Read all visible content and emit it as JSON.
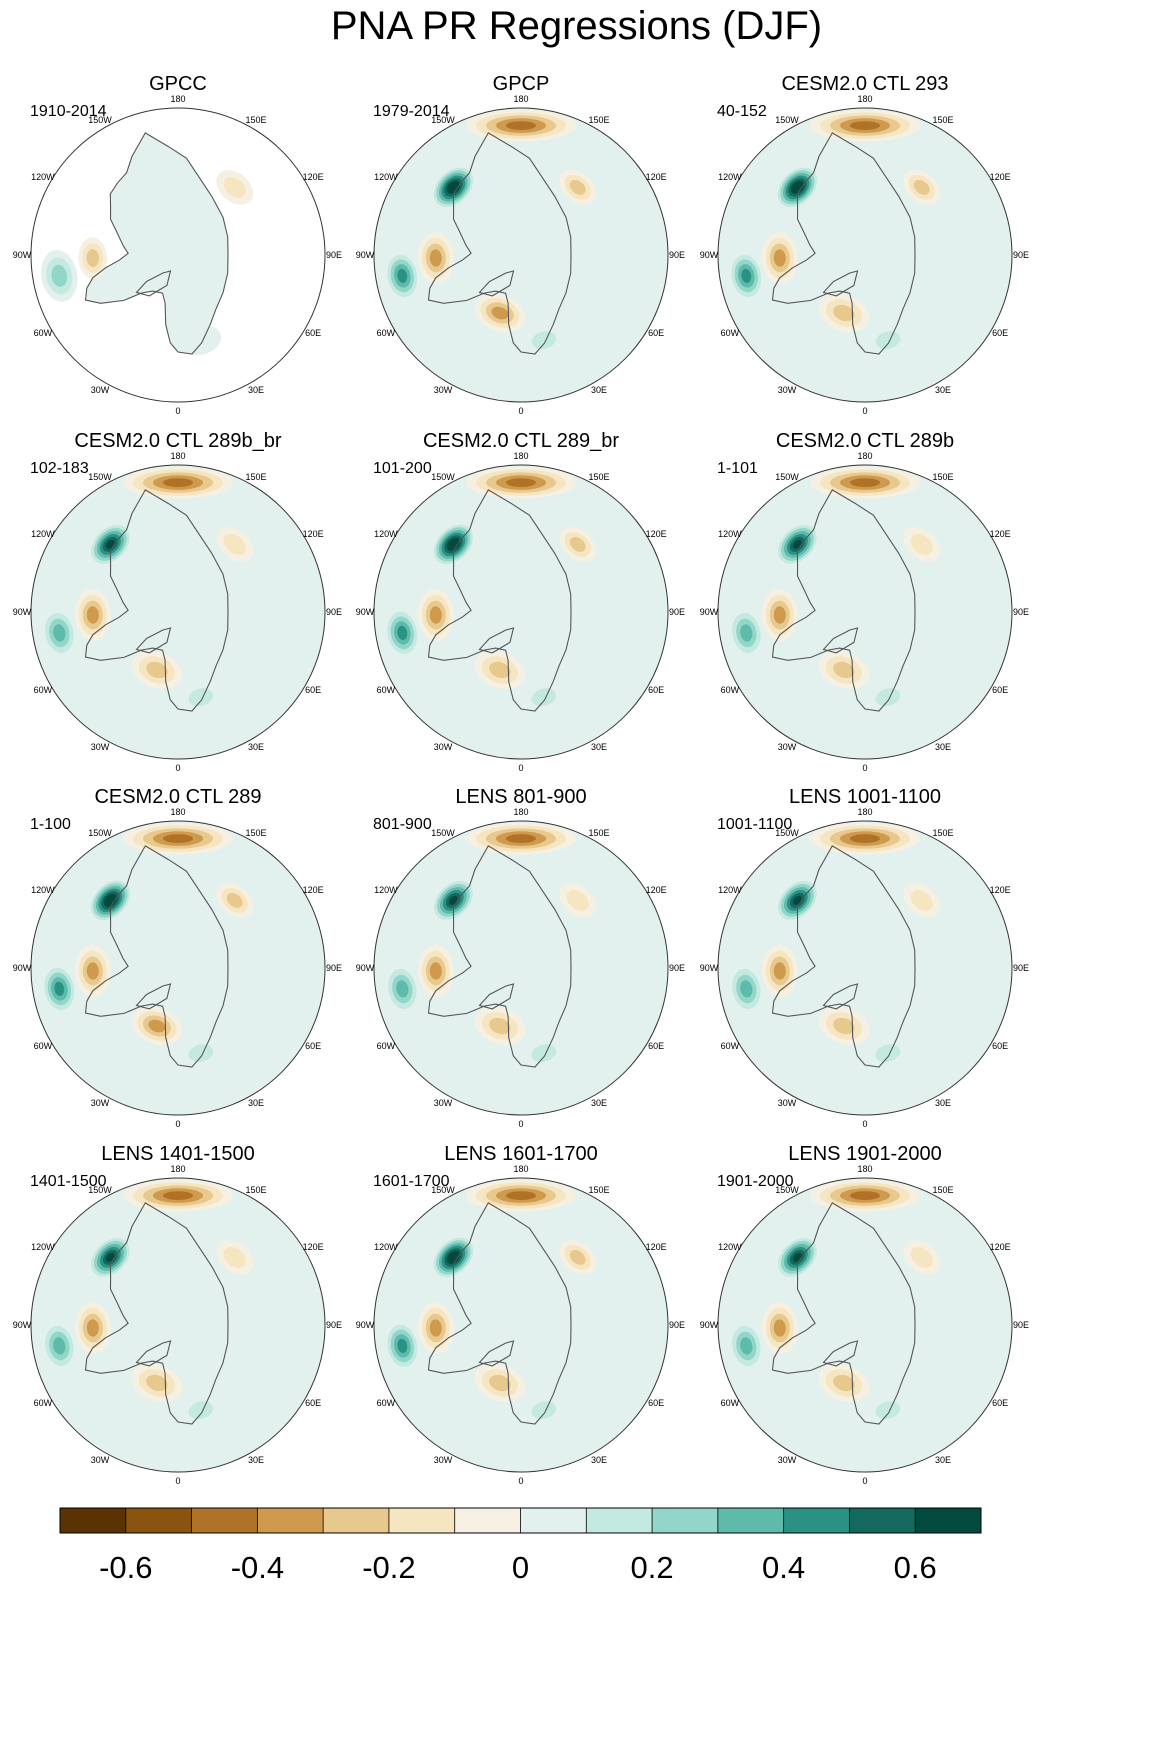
{
  "title": "PNA PR Regressions (DJF)",
  "colors": {
    "land_outline": "#555555",
    "frame": "#333333",
    "missing": "#ffffff"
  },
  "chart_data": {
    "type": "heatmap",
    "projection": "north polar stereographic",
    "season": "DJF",
    "variable": "PR regression on PNA index",
    "longitude_labels": [
      "180",
      "150E",
      "120E",
      "90E",
      "60E",
      "30E",
      "0",
      "30W",
      "60W",
      "90W",
      "120W",
      "150W"
    ],
    "panels": [
      {
        "title": "GPCC",
        "period": "1910-2014",
        "land_only": true
      },
      {
        "title": "GPCP",
        "period": "1979-2014",
        "land_only": false
      },
      {
        "title": "CESM2.0 CTL 293",
        "period": "40-152",
        "land_only": false
      },
      {
        "title": "CESM2.0 CTL 289b_br",
        "period": "102-183",
        "land_only": false
      },
      {
        "title": "CESM2.0 CTL 289_br",
        "period": "101-200",
        "land_only": false
      },
      {
        "title": "CESM2.0 CTL 289b",
        "period": "1-101",
        "land_only": false
      },
      {
        "title": "CESM2.0 CTL 289",
        "period": "1-100",
        "land_only": false
      },
      {
        "title": "LENS 801-900",
        "period": "801-900",
        "land_only": false
      },
      {
        "title": "LENS 1001-1100",
        "period": "1001-1100",
        "land_only": false
      },
      {
        "title": "LENS 1401-1500",
        "period": "1401-1500",
        "land_only": false
      },
      {
        "title": "LENS 1601-1700",
        "period": "1601-1700",
        "land_only": false
      },
      {
        "title": "LENS 1901-2000",
        "period": "1901-2000",
        "land_only": false
      }
    ],
    "colorbar": {
      "levels": [
        -0.7,
        -0.6,
        -0.5,
        -0.4,
        -0.3,
        -0.2,
        -0.1,
        0,
        0.1,
        0.2,
        0.3,
        0.4,
        0.5,
        0.6,
        0.7
      ],
      "colors": [
        "#5a3305",
        "#8a5410",
        "#b07226",
        "#cf9a4e",
        "#e7c98e",
        "#f6e5c1",
        "#f5f0e2",
        "#e3f1ee",
        "#c4e9e0",
        "#92d6c9",
        "#5ebbab",
        "#2b9184",
        "#13695e",
        "#024a3e"
      ],
      "tick_labels": [
        "-0.6",
        "-0.4",
        "-0.2",
        "0",
        "0.2",
        "0.4",
        "0.6"
      ],
      "tick_values": [
        -0.6,
        -0.4,
        -0.2,
        0,
        0.2,
        0.4,
        0.6
      ]
    },
    "features": [
      {
        "name": "north-pacific-dry",
        "lon": 180,
        "colat": 0.88,
        "value": -0.5
      },
      {
        "name": "alaska-gulf-wet",
        "lon": -135,
        "colat": 0.65,
        "value": 0.75
      },
      {
        "name": "southeast-us-wet",
        "lon": -80,
        "colat": 0.82,
        "value": 0.45
      },
      {
        "name": "ohio-valley-dry",
        "lon": -88,
        "colat": 0.58,
        "value": -0.4
      },
      {
        "name": "north-atlantic-dry",
        "lon": -20,
        "colat": 0.42,
        "value": -0.35
      },
      {
        "name": "europe-wet",
        "lon": 15,
        "colat": 0.6,
        "value": 0.2
      },
      {
        "name": "east-asia-dry",
        "lon": 140,
        "colat": 0.6,
        "value": -0.25
      }
    ]
  }
}
